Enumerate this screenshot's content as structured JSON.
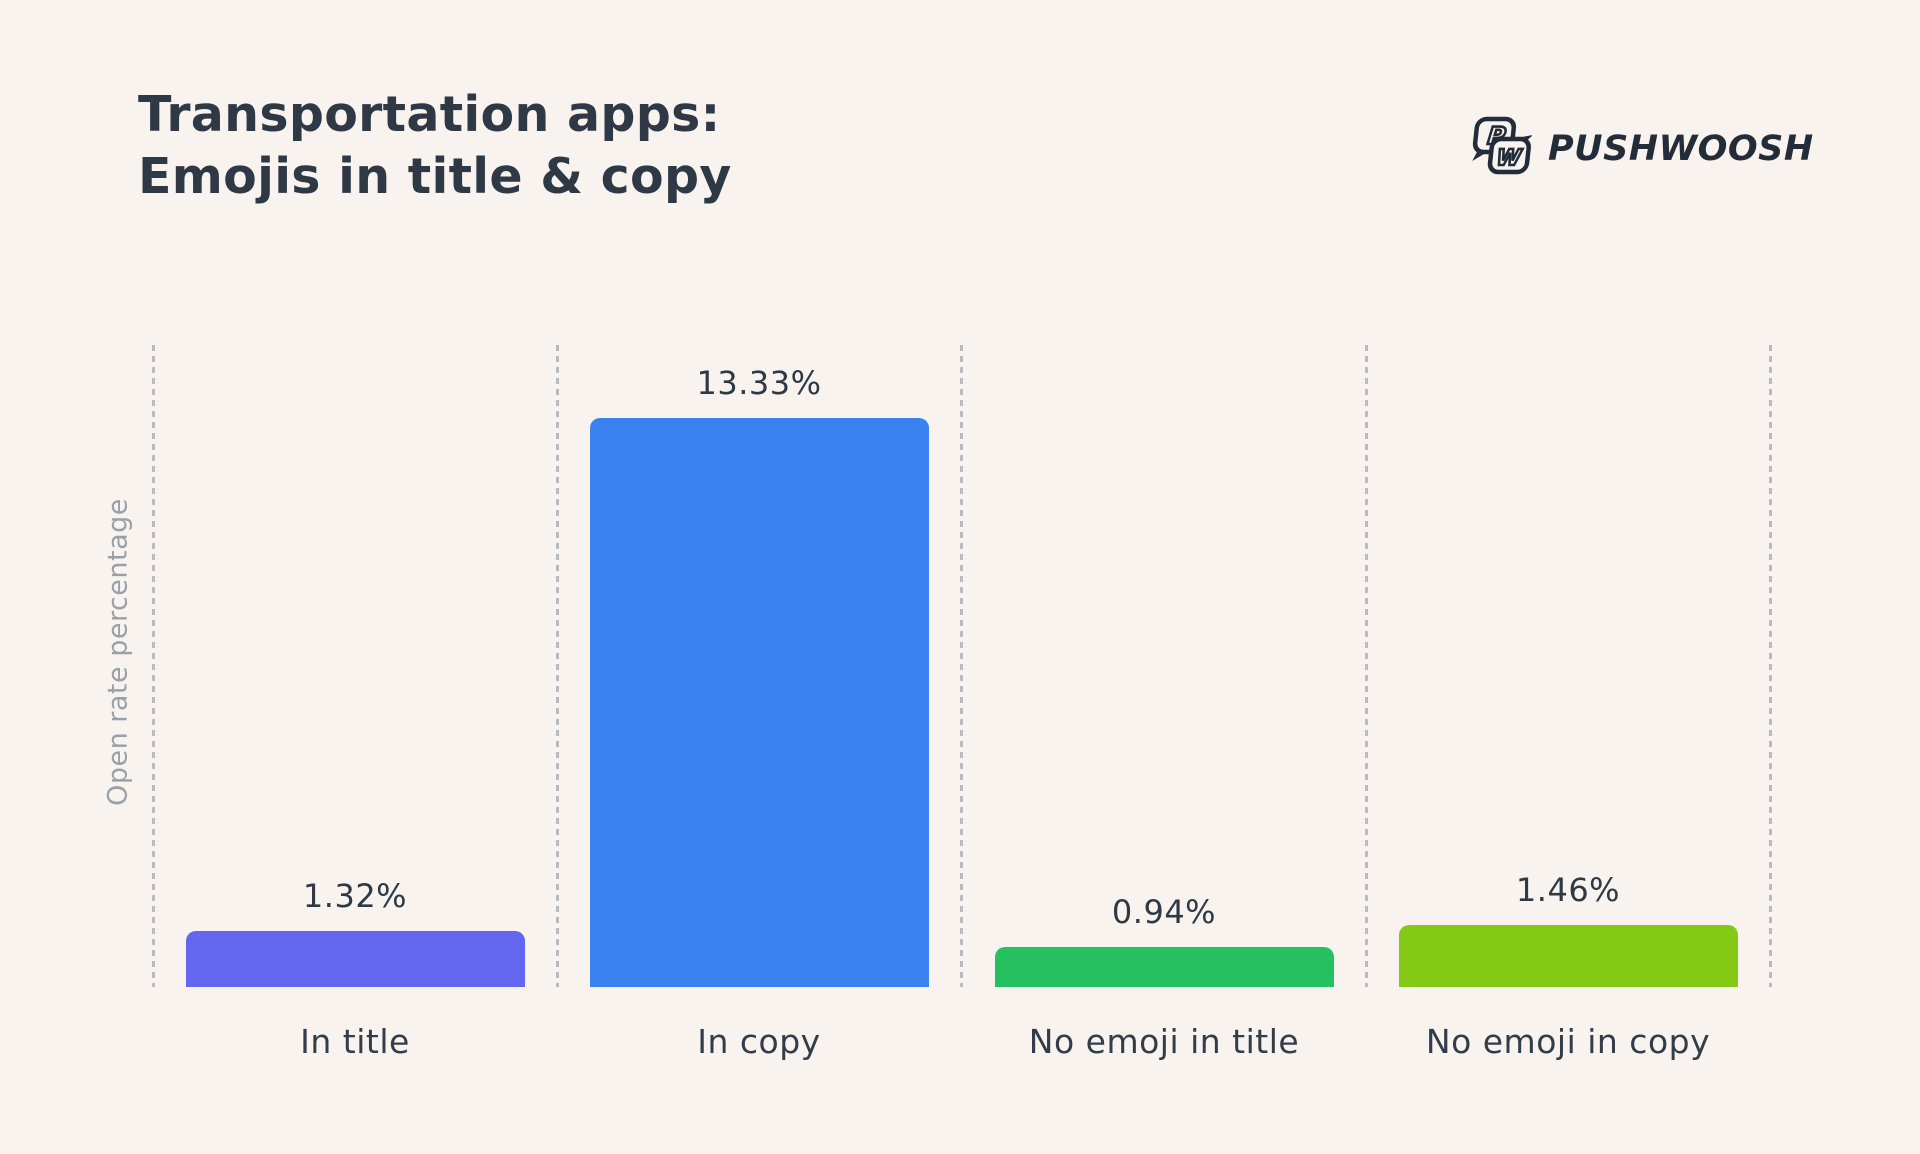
{
  "page": {
    "background": "#f8f3ee"
  },
  "header": {
    "title_line1": "Transportation apps:",
    "title_line2": "Emojis in title & copy"
  },
  "brand": {
    "name": "PUSHWOOSH",
    "icon_letter_p": "P",
    "icon_letter_w": "W",
    "color": "#232d39"
  },
  "chart_data": {
    "type": "bar",
    "title": "Transportation apps: Emojis in title & copy",
    "xlabel": "",
    "ylabel": "Open rate percentage",
    "categories": [
      "In title",
      "In copy",
      "No emoji in title",
      "No emoji in copy"
    ],
    "values": [
      1.32,
      13.33,
      0.94,
      1.46
    ],
    "value_labels": [
      "1.32%",
      "13.33%",
      "0.94%",
      "1.46%"
    ],
    "unit": "%",
    "ylim": [
      0,
      15.05
    ],
    "bar_colors": [
      "#6366ee",
      "#3b82f1",
      "#25c160",
      "#83c916"
    ],
    "grid": "vertical-dashed-column-separators",
    "legend": "none",
    "text_color": "#2e3945",
    "muted_color": "#99a1a8",
    "separator_color": "#babbc2"
  }
}
